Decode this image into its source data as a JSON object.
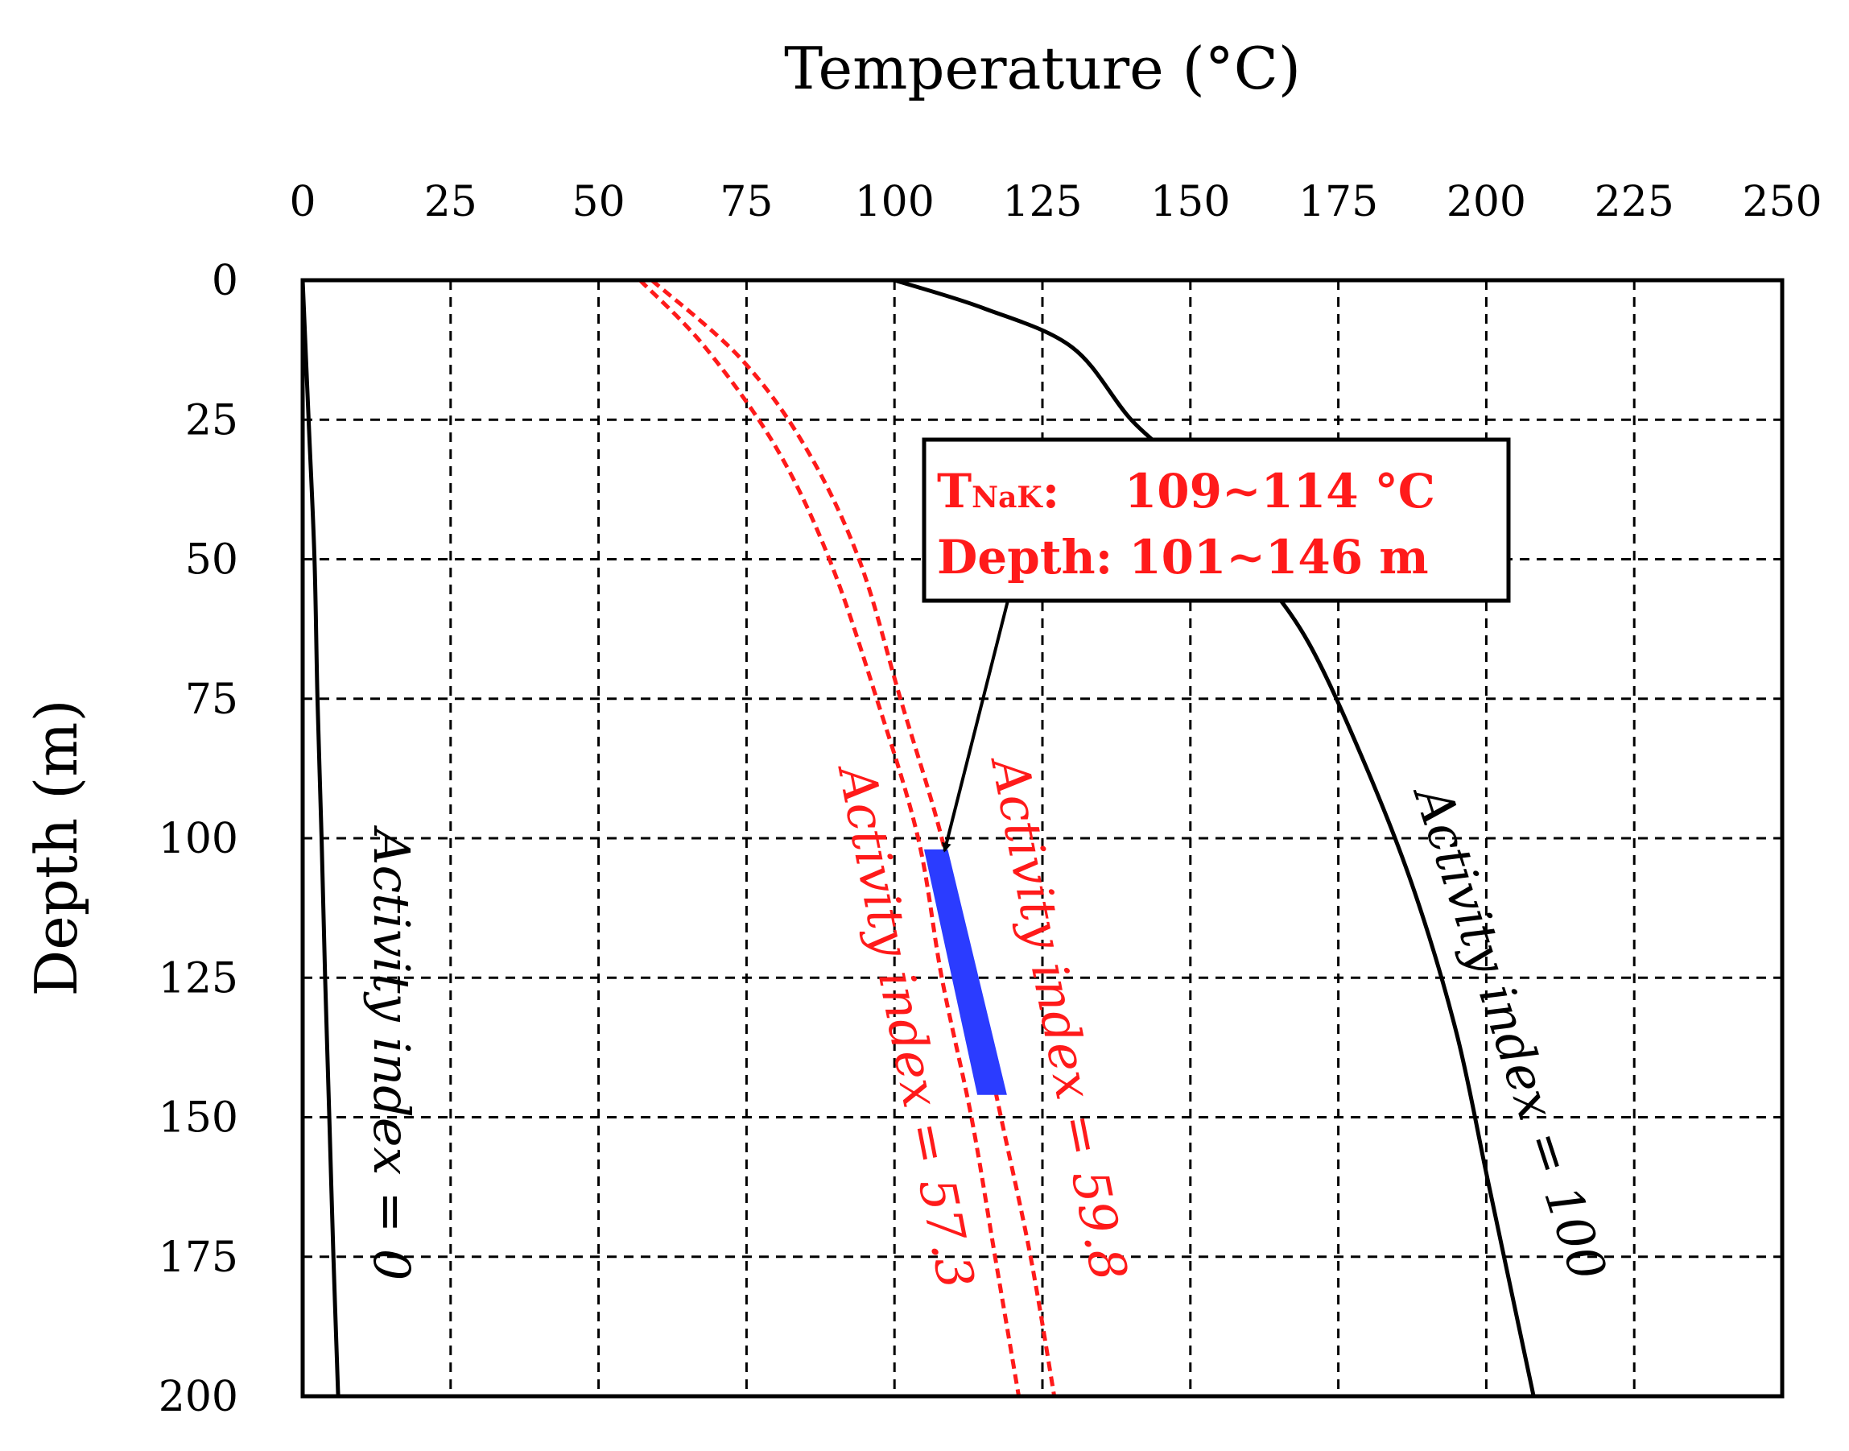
{
  "chart_data": {
    "type": "line",
    "title": "",
    "xlabel": "Temperature (°C)",
    "ylabel": "Depth (m)",
    "xlim": [
      0,
      250
    ],
    "ylim": [
      0,
      200
    ],
    "x_axis_position": "top",
    "y_axis_inverted": true,
    "grid": true,
    "x_ticks": [
      "0",
      "25",
      "50",
      "75",
      "100",
      "125",
      "150",
      "175",
      "200",
      "225",
      "250"
    ],
    "y_ticks": [
      "0",
      "25",
      "50",
      "75",
      "100",
      "125",
      "150",
      "175",
      "200"
    ],
    "series": [
      {
        "name": "Activity index = 0",
        "label": "Activity index = 0",
        "color": "#000000",
        "style": "solid",
        "points": [
          [
            0,
            0
          ],
          [
            1,
            25
          ],
          [
            2,
            50
          ],
          [
            2.5,
            75
          ],
          [
            3.2,
            100
          ],
          [
            3.8,
            125
          ],
          [
            4.5,
            150
          ],
          [
            5.2,
            175
          ],
          [
            6,
            200
          ]
        ]
      },
      {
        "name": "Activity index = 57.3",
        "label": "Activity index = 57.3",
        "color": "#ff1a1a",
        "style": "dashed",
        "points": [
          [
            57,
            0
          ],
          [
            68,
            12
          ],
          [
            80,
            30
          ],
          [
            89,
            50
          ],
          [
            97,
            75
          ],
          [
            104,
            100
          ],
          [
            108,
            125
          ],
          [
            113,
            150
          ],
          [
            117,
            175
          ],
          [
            121,
            200
          ]
        ]
      },
      {
        "name": "Activity index = 59.8",
        "label": "Activity index = 59.8",
        "color": "#ff1a1a",
        "style": "dashed",
        "points": [
          [
            59,
            0
          ],
          [
            74,
            14
          ],
          [
            85,
            30
          ],
          [
            94,
            50
          ],
          [
            101,
            75
          ],
          [
            108,
            100
          ],
          [
            113,
            125
          ],
          [
            118,
            150
          ],
          [
            123,
            175
          ],
          [
            127,
            200
          ]
        ]
      },
      {
        "name": "Activity index = 100",
        "label": "Activity index = 100",
        "color": "#000000",
        "style": "solid",
        "points": [
          [
            100,
            0
          ],
          [
            115,
            5
          ],
          [
            130,
            12
          ],
          [
            140,
            25
          ],
          [
            150,
            35
          ],
          [
            160,
            50
          ],
          [
            170,
            65
          ],
          [
            180,
            88
          ],
          [
            188,
            110
          ],
          [
            195,
            135
          ],
          [
            200,
            160
          ],
          [
            204,
            180
          ],
          [
            208,
            200
          ]
        ]
      }
    ],
    "highlight_band": {
      "color": "#2b3cff",
      "polygon": [
        [
          105,
          102
        ],
        [
          109,
          102
        ],
        [
          119,
          146
        ],
        [
          114,
          146
        ]
      ]
    },
    "callout": {
      "line1_main": "T",
      "line1_sub": "NaK",
      "line1_rest": ":    109∼114 °C",
      "line2": "Depth: 101∼146 m",
      "text_color": "#ff1a1a",
      "arrow_to": [
        109,
        102
      ]
    }
  }
}
